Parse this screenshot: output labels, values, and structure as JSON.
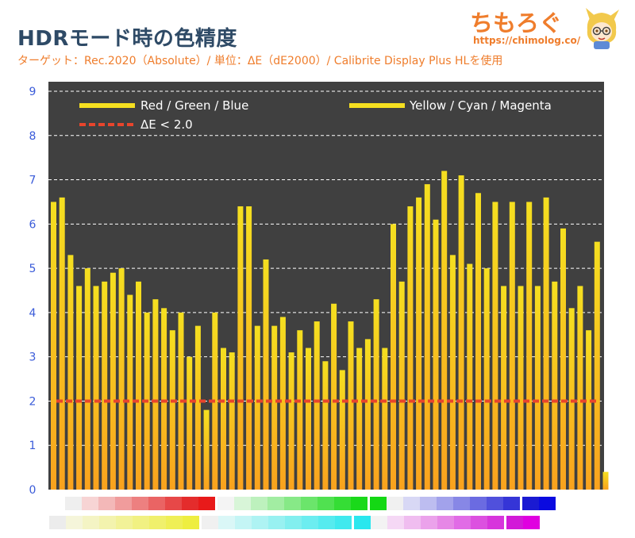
{
  "header": {
    "title": "HDRモード時の色精度",
    "subtitle": "ターゲット：Rec.2020（Absolute）/ 単位：ΔE（dE2000）/ Calibrite Display Plus HLを使用"
  },
  "logo": {
    "text": "ちもろぐ",
    "url": "https://chimolog.co/"
  },
  "colors": {
    "background": "#404040",
    "bar_top": "#f5df20",
    "bar_bottom": "#f9a21e",
    "threshold": "#e8452c",
    "axis_label": "#3a5bd9",
    "grid": "#ffffff",
    "title": "#2e4a66",
    "subtitle": "#ef7d2c"
  },
  "chart_data": {
    "type": "bar",
    "ylim": [
      0,
      9
    ],
    "yticks": [
      0,
      1,
      2,
      3,
      4,
      5,
      6,
      7,
      8,
      9
    ],
    "grid": "horizontal dashed",
    "legend_position": "top",
    "legend": [
      {
        "label": "Red / Green / Blue",
        "style": "solid"
      },
      {
        "label": "Yellow / Cyan / Magenta",
        "style": "solid"
      },
      {
        "label": "ΔE < 2.0",
        "style": "dashed"
      }
    ],
    "threshold": 2.0,
    "values": [
      6.5,
      6.6,
      5.3,
      4.6,
      5.0,
      4.6,
      4.7,
      4.9,
      5.0,
      4.4,
      4.7,
      4.0,
      4.3,
      4.1,
      3.6,
      4.0,
      3.0,
      3.7,
      1.8,
      4.0,
      3.2,
      3.1,
      6.4,
      6.4,
      3.7,
      5.2,
      3.7,
      3.9,
      3.1,
      3.6,
      3.2,
      3.8,
      2.9,
      4.2,
      2.7,
      3.8,
      3.2,
      3.4,
      4.3,
      3.2,
      6.0,
      4.7,
      6.4,
      6.6,
      6.9,
      6.1,
      7.2,
      5.3,
      7.1,
      5.1,
      6.7,
      5.0,
      6.5,
      4.6,
      6.5,
      4.6,
      6.5,
      4.6,
      6.6,
      4.7,
      5.9,
      4.1,
      4.6,
      3.6,
      5.6,
      0.4
    ],
    "swatch_rows": [
      [
        "#efefef",
        "#f7d4d4",
        "#f3b8b8",
        "#f09c9c",
        "#ed8080",
        "#ea6464",
        "#e74848",
        "#e42c2c",
        "#e81a1a",
        "#f4f4f4",
        "#d8f5d8",
        "#bdf1bd",
        "#a2eda2",
        "#87e987",
        "#6be56b",
        "#50e150",
        "#35dd35",
        "#1ad91a",
        "#14d814",
        "#f0f0f0",
        "#d8d8f5",
        "#bdbdf0",
        "#a2a2eb",
        "#8787e6",
        "#6b6be1",
        "#5050dc",
        "#3535d7",
        "#1a1ad2",
        "#0a0ae0"
      ],
      [
        "#ececec",
        "#f5f5da",
        "#f4f4c4",
        "#f3f3ae",
        "#f2f298",
        "#f1f182",
        "#f0f06c",
        "#efef56",
        "#eeee40",
        "#f0f0f0",
        "#daf7f7",
        "#c4f5f5",
        "#aef3f3",
        "#98f1f1",
        "#82efef",
        "#6cedf0",
        "#56ebef",
        "#40e9ee",
        "#2ae7ee",
        "#f3f3f3",
        "#f5d8f5",
        "#f0bdf0",
        "#eba2eb",
        "#e687e6",
        "#e16be6",
        "#dc50e0",
        "#d735dc",
        "#d21ad8",
        "#e000e0"
      ]
    ]
  }
}
